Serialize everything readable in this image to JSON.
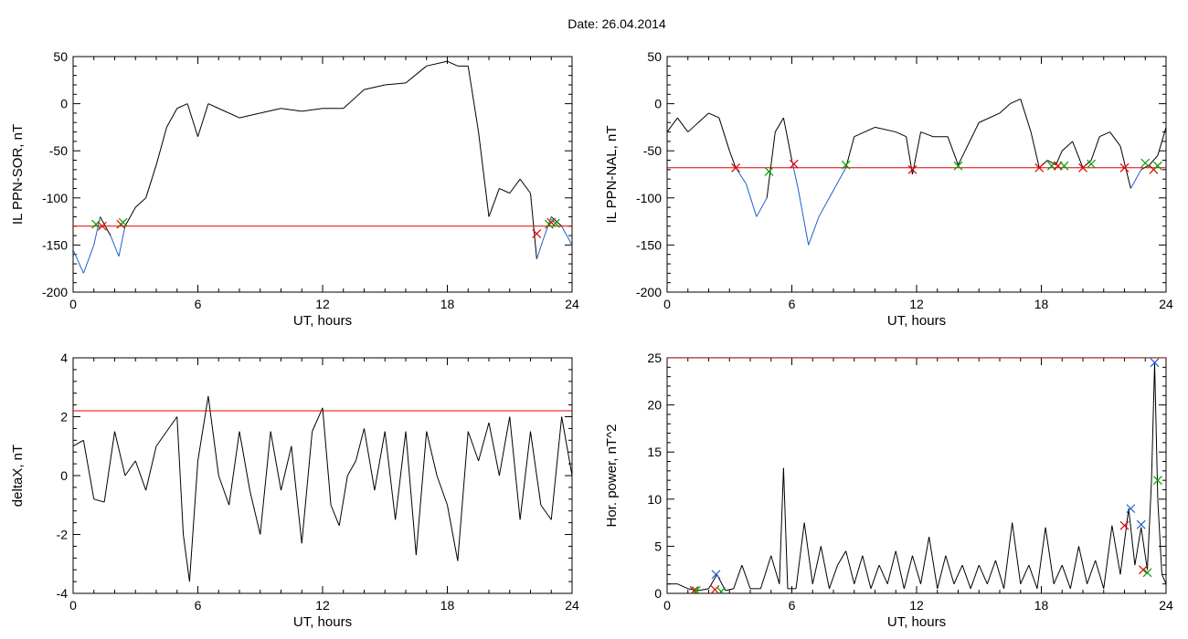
{
  "page": {
    "date_label": "Date:  26.04.2014"
  },
  "colors": {
    "axis": "#000000",
    "trace": "#000000",
    "below_threshold_trace": "#1f5fd0",
    "threshold_line": "#e00000",
    "marker_red": "#e00000",
    "marker_green": "#00a000",
    "marker_blue": "#1f5fd0"
  },
  "chart_data": [
    {
      "id": "ppn-sor",
      "type": "line",
      "xlabel": "UT, hours",
      "ylabel": "IL PPN-SOR, nT",
      "xlim": [
        0,
        24
      ],
      "ylim": [
        -200,
        50
      ],
      "xticks": [
        0,
        6,
        12,
        18,
        24
      ],
      "yticks": [
        -200,
        -150,
        -100,
        -50,
        0,
        50
      ],
      "threshold": -130,
      "series": [
        {
          "x": [
            0,
            0.5,
            1.0,
            1.3,
            1.8,
            2.2,
            2.5,
            3.0,
            3.5,
            4.0,
            4.5,
            5.0,
            5.5,
            6.0,
            6.5,
            7.0,
            8.0,
            9.0,
            10.0,
            11.0,
            12.0,
            13.0,
            14.0,
            15.0,
            16.0,
            17.0,
            18.0,
            18.5,
            19.0,
            19.5,
            20.0,
            20.5,
            21.0,
            21.5,
            22.0,
            22.3,
            22.6,
            23.0,
            23.5,
            24.0
          ],
          "y": [
            -155,
            -180,
            -150,
            -120,
            -140,
            -162,
            -130,
            -110,
            -100,
            -65,
            -25,
            -5,
            0,
            -35,
            0,
            -5,
            -15,
            -10,
            -5,
            -8,
            -5,
            -5,
            15,
            20,
            22,
            40,
            45,
            40,
            40,
            -30,
            -120,
            -90,
            -95,
            -80,
            -95,
            -165,
            -145,
            -120,
            -130,
            -150
          ]
        }
      ],
      "markers": [
        {
          "x": 1.1,
          "y": -128,
          "color": "green"
        },
        {
          "x": 1.4,
          "y": -130,
          "color": "red"
        },
        {
          "x": 2.3,
          "y": -128,
          "color": "red"
        },
        {
          "x": 2.4,
          "y": -126,
          "color": "green"
        },
        {
          "x": 22.3,
          "y": -138,
          "color": "red"
        },
        {
          "x": 22.9,
          "y": -128,
          "color": "green"
        },
        {
          "x": 23.0,
          "y": -126,
          "color": "red"
        },
        {
          "x": 23.2,
          "y": -127,
          "color": "green"
        }
      ]
    },
    {
      "id": "ppn-nal",
      "type": "line",
      "xlabel": "UT, hours",
      "ylabel": "IL PPN-NAL, nT",
      "xlim": [
        0,
        24
      ],
      "ylim": [
        -200,
        50
      ],
      "xticks": [
        0,
        6,
        12,
        18,
        24
      ],
      "yticks": [
        -200,
        -150,
        -100,
        -50,
        0,
        50
      ],
      "threshold": -68,
      "series": [
        {
          "x": [
            0,
            0.5,
            1.0,
            1.5,
            2.0,
            2.5,
            3.0,
            3.3,
            3.8,
            4.3,
            4.8,
            5.2,
            5.6,
            6.0,
            6.3,
            6.8,
            7.3,
            7.8,
            8.3,
            8.6,
            9.0,
            10.0,
            11.0,
            11.5,
            11.8,
            12.2,
            12.8,
            13.5,
            14.0,
            15.0,
            16.0,
            16.5,
            17.0,
            17.5,
            17.9,
            18.3,
            18.7,
            19.0,
            19.5,
            20.0,
            20.4,
            20.8,
            21.3,
            21.8,
            22.3,
            22.8,
            23.2,
            23.6,
            24.0
          ],
          "y": [
            -30,
            -15,
            -30,
            -20,
            -10,
            -15,
            -50,
            -68,
            -85,
            -120,
            -100,
            -30,
            -15,
            -60,
            -90,
            -150,
            -120,
            -100,
            -80,
            -68,
            -35,
            -25,
            -30,
            -35,
            -75,
            -30,
            -35,
            -35,
            -65,
            -20,
            -10,
            0,
            5,
            -30,
            -68,
            -60,
            -65,
            -50,
            -40,
            -68,
            -60,
            -35,
            -30,
            -45,
            -90,
            -70,
            -65,
            -55,
            -25
          ]
        }
      ],
      "markers": [
        {
          "x": 3.3,
          "y": -68,
          "color": "red"
        },
        {
          "x": 4.9,
          "y": -72,
          "color": "green"
        },
        {
          "x": 6.1,
          "y": -64,
          "color": "red"
        },
        {
          "x": 8.6,
          "y": -65,
          "color": "green"
        },
        {
          "x": 11.8,
          "y": -70,
          "color": "red"
        },
        {
          "x": 14.0,
          "y": -66,
          "color": "green"
        },
        {
          "x": 17.9,
          "y": -68,
          "color": "red"
        },
        {
          "x": 18.5,
          "y": -66,
          "color": "green"
        },
        {
          "x": 18.8,
          "y": -66,
          "color": "red"
        },
        {
          "x": 19.1,
          "y": -66,
          "color": "green"
        },
        {
          "x": 20.0,
          "y": -68,
          "color": "red"
        },
        {
          "x": 20.4,
          "y": -64,
          "color": "green"
        },
        {
          "x": 22.0,
          "y": -68,
          "color": "red"
        },
        {
          "x": 23.0,
          "y": -63,
          "color": "green"
        },
        {
          "x": 23.4,
          "y": -70,
          "color": "red"
        },
        {
          "x": 23.6,
          "y": -66,
          "color": "green"
        }
      ]
    },
    {
      "id": "deltax",
      "type": "line",
      "xlabel": "UT, hours",
      "ylabel": "deltaX, nT",
      "xlim": [
        0,
        24
      ],
      "ylim": [
        -4,
        4
      ],
      "xticks": [
        0,
        6,
        12,
        18,
        24
      ],
      "yticks": [
        -4,
        -2,
        0,
        2,
        4
      ],
      "threshold": 2.2,
      "series": [
        {
          "x": [
            0,
            0.5,
            1.0,
            1.5,
            2.0,
            2.5,
            3.0,
            3.5,
            4.0,
            4.5,
            5.0,
            5.3,
            5.6,
            6.0,
            6.5,
            7.0,
            7.5,
            8.0,
            8.5,
            9.0,
            9.5,
            10.0,
            10.5,
            11.0,
            11.5,
            12.0,
            12.4,
            12.8,
            13.2,
            13.6,
            14.0,
            14.5,
            15.0,
            15.5,
            16.0,
            16.5,
            17.0,
            17.5,
            18.0,
            18.5,
            19.0,
            19.5,
            20.0,
            20.5,
            21.0,
            21.5,
            22.0,
            22.5,
            23.0,
            23.5,
            24.0
          ],
          "y": [
            1.0,
            1.2,
            -0.8,
            -0.9,
            1.5,
            0.0,
            0.5,
            -0.5,
            1.0,
            1.5,
            2.0,
            -2.0,
            -3.6,
            0.5,
            2.7,
            0.0,
            -1.0,
            1.5,
            -0.5,
            -2.0,
            1.5,
            -0.5,
            1.0,
            -2.3,
            1.5,
            2.3,
            -1.0,
            -1.7,
            0.0,
            0.5,
            1.6,
            -0.5,
            1.5,
            -1.5,
            1.5,
            -2.7,
            1.5,
            0.0,
            -1.0,
            -2.9,
            1.5,
            0.5,
            1.8,
            0.0,
            2.0,
            -1.5,
            1.5,
            -1.0,
            -1.5,
            2.0,
            0.0
          ]
        }
      ]
    },
    {
      "id": "hor-power",
      "type": "line",
      "xlabel": "UT, hours",
      "ylabel": "Hor. power, nT^2",
      "xlim": [
        0,
        24
      ],
      "ylim": [
        0,
        25
      ],
      "xticks": [
        0,
        6,
        12,
        18,
        24
      ],
      "yticks": [
        0,
        5,
        10,
        15,
        20,
        25
      ],
      "threshold": 25,
      "series": [
        {
          "x": [
            0,
            0.5,
            1.0,
            1.5,
            2.0,
            2.4,
            2.8,
            3.2,
            3.6,
            4.0,
            4.5,
            5.0,
            5.4,
            5.6,
            5.8,
            6.2,
            6.6,
            7.0,
            7.4,
            7.8,
            8.2,
            8.6,
            9.0,
            9.4,
            9.8,
            10.2,
            10.6,
            11.0,
            11.4,
            11.8,
            12.2,
            12.6,
            13.0,
            13.4,
            13.8,
            14.2,
            14.6,
            15.0,
            15.4,
            15.8,
            16.2,
            16.6,
            17.0,
            17.4,
            17.8,
            18.2,
            18.6,
            19.0,
            19.4,
            19.8,
            20.2,
            20.6,
            21.0,
            21.4,
            21.8,
            22.2,
            22.5,
            22.8,
            23.1,
            23.3,
            23.45,
            23.6,
            23.8,
            24.0
          ],
          "y": [
            1.0,
            1.0,
            0.5,
            0.3,
            0.5,
            2.0,
            0.3,
            0.5,
            3.0,
            0.5,
            0.5,
            4.0,
            1.0,
            13.3,
            0.5,
            0.5,
            7.5,
            1.0,
            5.0,
            0.5,
            3.0,
            4.5,
            1.0,
            4.0,
            0.5,
            3.0,
            1.0,
            4.5,
            0.5,
            4.0,
            1.0,
            6.0,
            0.5,
            4.0,
            1.0,
            3.0,
            0.5,
            3.0,
            1.0,
            3.5,
            0.5,
            7.5,
            1.0,
            3.0,
            0.5,
            7.0,
            1.0,
            3.0,
            0.5,
            5.0,
            1.0,
            3.5,
            0.5,
            7.2,
            2.0,
            9.0,
            3.0,
            7.0,
            2.5,
            12.0,
            24.5,
            10.0,
            2.0,
            1.0
          ]
        }
      ],
      "markers": [
        {
          "x": 1.3,
          "y": 0.3,
          "color": "red"
        },
        {
          "x": 1.4,
          "y": 0.3,
          "color": "green"
        },
        {
          "x": 2.3,
          "y": 0.4,
          "color": "red"
        },
        {
          "x": 2.35,
          "y": 2.0,
          "color": "blue"
        },
        {
          "x": 2.6,
          "y": 0.2,
          "color": "green"
        },
        {
          "x": 22.0,
          "y": 7.2,
          "color": "red"
        },
        {
          "x": 22.3,
          "y": 9.0,
          "color": "blue"
        },
        {
          "x": 22.8,
          "y": 7.3,
          "color": "blue"
        },
        {
          "x": 22.9,
          "y": 2.5,
          "color": "red"
        },
        {
          "x": 23.1,
          "y": 2.2,
          "color": "green"
        },
        {
          "x": 23.45,
          "y": 24.5,
          "color": "blue"
        },
        {
          "x": 23.6,
          "y": 12.0,
          "color": "green"
        }
      ]
    }
  ]
}
